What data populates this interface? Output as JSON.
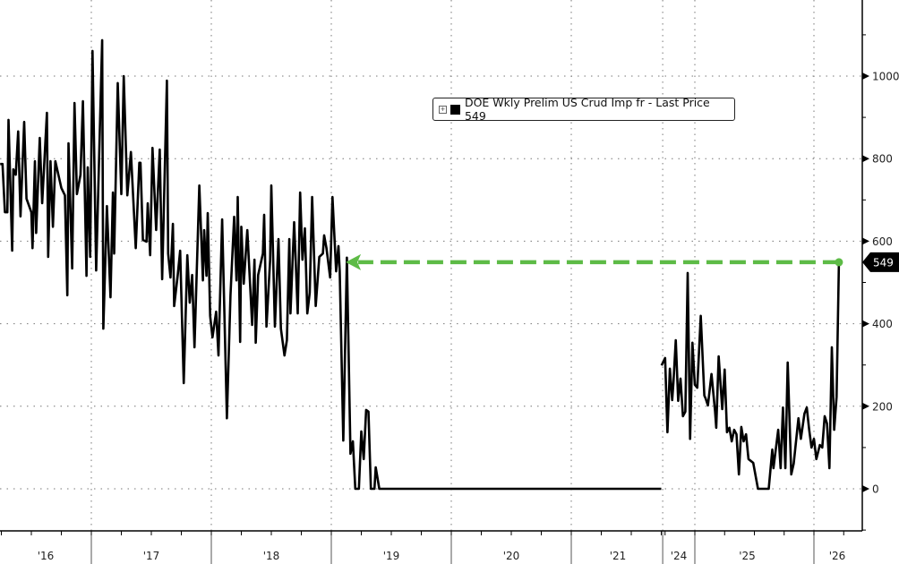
{
  "chart_data": {
    "type": "line",
    "title": "",
    "xlabel": "",
    "ylabel": "",
    "ylim": [
      -100,
      1185
    ],
    "y_ticks": [
      0,
      200,
      400,
      600,
      800,
      1000
    ],
    "y_tick_labels": [
      "0",
      "200",
      "400",
      "600",
      "800",
      "1000"
    ],
    "x_tick_labels": [
      "'16",
      "'17",
      "'18",
      "'19",
      "'20",
      "'21",
      "'24",
      "'25",
      "'26"
    ],
    "x_axis_break": "2021 to 2024",
    "grid": true,
    "axis_side": "right",
    "legend": {
      "placement": "top-center",
      "text": "DOE Wkly Prelim US Crud Imp fr - Last Price 549"
    },
    "last_price_label": "549",
    "last_price": 549,
    "reference_line": {
      "style": "dashed arrow",
      "color": "#5dbb46",
      "value": 549,
      "from_year": 2026.21,
      "to_year": 2019.12
    },
    "series": [
      {
        "color": "#000000",
        "segments": [
          [
            [
              2016.24,
              787
            ],
            [
              2016.26,
              787
            ],
            [
              2016.28,
              670
            ],
            [
              2016.3,
              670
            ],
            [
              2016.31,
              894
            ],
            [
              2016.34,
              577
            ],
            [
              2016.35,
              774
            ],
            [
              2016.37,
              761
            ],
            [
              2016.39,
              866
            ],
            [
              2016.41,
              660
            ],
            [
              2016.44,
              889
            ],
            [
              2016.46,
              703
            ],
            [
              2016.5,
              670
            ],
            [
              2016.51,
              583
            ],
            [
              2016.53,
              794
            ],
            [
              2016.54,
              620
            ],
            [
              2016.57,
              850
            ],
            [
              2016.59,
              692
            ],
            [
              2016.63,
              911
            ],
            [
              2016.64,
              562
            ],
            [
              2016.66,
              794
            ],
            [
              2016.68,
              635
            ],
            [
              2016.7,
              794
            ],
            [
              2016.75,
              729
            ],
            [
              2016.78,
              711
            ],
            [
              2016.8,
              469
            ],
            [
              2016.81,
              837
            ],
            [
              2016.84,
              534
            ],
            [
              2016.86,
              935
            ],
            [
              2016.88,
              714
            ],
            [
              2016.91,
              761
            ],
            [
              2016.93,
              939
            ],
            [
              2016.96,
              516
            ],
            [
              2016.97,
              779
            ],
            [
              2016.99,
              562
            ],
            [
              2017.01,
              1061
            ],
            [
              2017.04,
              529
            ],
            [
              2017.09,
              1087
            ],
            [
              2017.1,
              388
            ],
            [
              2017.13,
              685
            ],
            [
              2017.16,
              464
            ],
            [
              2017.18,
              718
            ],
            [
              2017.19,
              570
            ],
            [
              2017.22,
              983
            ],
            [
              2017.25,
              714
            ],
            [
              2017.27,
              1000
            ],
            [
              2017.3,
              711
            ],
            [
              2017.33,
              816
            ],
            [
              2017.37,
              583
            ],
            [
              2017.4,
              790
            ],
            [
              2017.41,
              790
            ],
            [
              2017.43,
              603
            ],
            [
              2017.46,
              599
            ],
            [
              2017.47,
              692
            ],
            [
              2017.49,
              566
            ],
            [
              2017.51,
              826
            ],
            [
              2017.54,
              627
            ],
            [
              2017.57,
              822
            ],
            [
              2017.59,
              508
            ],
            [
              2017.63,
              989
            ],
            [
              2017.64,
              570
            ],
            [
              2017.66,
              512
            ],
            [
              2017.68,
              642
            ],
            [
              2017.69,
              443
            ],
            [
              2017.72,
              518
            ],
            [
              2017.74,
              577
            ],
            [
              2017.77,
              256
            ],
            [
              2017.8,
              566
            ],
            [
              2017.82,
              451
            ],
            [
              2017.84,
              518
            ],
            [
              2017.86,
              343
            ],
            [
              2017.9,
              735
            ],
            [
              2017.93,
              505
            ],
            [
              2017.94,
              627
            ],
            [
              2017.96,
              516
            ],
            [
              2017.97,
              668
            ],
            [
              2017.99,
              419
            ],
            [
              2018.01,
              367
            ],
            [
              2018.04,
              429
            ],
            [
              2018.06,
              323
            ],
            [
              2018.09,
              653
            ],
            [
              2018.13,
              171
            ],
            [
              2018.16,
              469
            ],
            [
              2018.19,
              659
            ],
            [
              2018.21,
              505
            ],
            [
              2018.22,
              707
            ],
            [
              2018.24,
              356
            ],
            [
              2018.25,
              635
            ],
            [
              2018.27,
              497
            ],
            [
              2018.3,
              627
            ],
            [
              2018.34,
              397
            ],
            [
              2018.36,
              555
            ],
            [
              2018.37,
              354
            ],
            [
              2018.39,
              518
            ],
            [
              2018.43,
              570
            ],
            [
              2018.44,
              664
            ],
            [
              2018.46,
              393
            ],
            [
              2018.49,
              555
            ],
            [
              2018.5,
              735
            ],
            [
              2018.53,
              393
            ],
            [
              2018.56,
              605
            ],
            [
              2018.58,
              388
            ],
            [
              2018.61,
              323
            ],
            [
              2018.63,
              360
            ],
            [
              2018.65,
              605
            ],
            [
              2018.66,
              425
            ],
            [
              2018.69,
              646
            ],
            [
              2018.7,
              577
            ],
            [
              2018.72,
              425
            ],
            [
              2018.74,
              718
            ],
            [
              2018.76,
              555
            ],
            [
              2018.78,
              631
            ],
            [
              2018.8,
              425
            ],
            [
              2018.82,
              475
            ],
            [
              2018.84,
              707
            ],
            [
              2018.87,
              443
            ],
            [
              2018.9,
              562
            ],
            [
              2018.93,
              570
            ],
            [
              2018.94,
              614
            ],
            [
              2018.96,
              583
            ],
            [
              2018.99,
              512
            ],
            [
              2019.01,
              707
            ],
            [
              2019.04,
              527
            ],
            [
              2019.06,
              588
            ],
            [
              2019.07,
              527
            ],
            [
              2019.1,
              117
            ],
            [
              2019.13,
              560
            ],
            [
              2019.16,
              85
            ],
            [
              2019.18,
              115
            ],
            [
              2019.2,
              0
            ],
            [
              2019.23,
              0
            ],
            [
              2019.25,
              139
            ],
            [
              2019.27,
              72
            ],
            [
              2019.29,
              191
            ],
            [
              2019.31,
              187
            ],
            [
              2019.33,
              0
            ],
            [
              2019.36,
              0
            ],
            [
              2019.37,
              52
            ],
            [
              2019.4,
              0
            ],
            [
              2021.75,
              0
            ]
          ],
          [
            [
              2024.72,
              299
            ],
            [
              2024.75,
              317
            ],
            [
              2024.77,
              137
            ],
            [
              2024.79,
              291
            ],
            [
              2024.81,
              215
            ],
            [
              2024.82,
              258
            ],
            [
              2024.84,
              360
            ],
            [
              2024.86,
              213
            ],
            [
              2024.88,
              267
            ],
            [
              2024.9,
              176
            ],
            [
              2024.92,
              187
            ],
            [
              2024.94,
              523
            ],
            [
              2024.96,
              121
            ],
            [
              2024.98,
              354
            ],
            [
              2025.0,
              252
            ],
            [
              2025.02,
              245
            ],
            [
              2025.05,
              419
            ],
            [
              2025.08,
              226
            ],
            [
              2025.09,
              219
            ],
            [
              2025.11,
              202
            ],
            [
              2025.14,
              278
            ],
            [
              2025.17,
              187
            ],
            [
              2025.18,
              148
            ],
            [
              2025.2,
              321
            ],
            [
              2025.23,
              193
            ],
            [
              2025.25,
              289
            ],
            [
              2025.27,
              137
            ],
            [
              2025.29,
              148
            ],
            [
              2025.31,
              115
            ],
            [
              2025.33,
              143
            ],
            [
              2025.35,
              132
            ],
            [
              2025.37,
              35
            ],
            [
              2025.39,
              150
            ],
            [
              2025.41,
              115
            ],
            [
              2025.43,
              132
            ],
            [
              2025.45,
              72
            ],
            [
              2025.49,
              63
            ],
            [
              2025.53,
              0
            ],
            [
              2025.62,
              0
            ],
            [
              2025.65,
              95
            ],
            [
              2025.66,
              50
            ],
            [
              2025.7,
              143
            ],
            [
              2025.72,
              50
            ],
            [
              2025.74,
              197
            ],
            [
              2025.76,
              50
            ],
            [
              2025.78,
              306
            ],
            [
              2025.81,
              35
            ],
            [
              2025.83,
              61
            ],
            [
              2025.87,
              171
            ],
            [
              2025.89,
              121
            ],
            [
              2025.92,
              182
            ],
            [
              2025.94,
              197
            ],
            [
              2025.96,
              143
            ],
            [
              2025.98,
              100
            ],
            [
              2026.0,
              121
            ],
            [
              2026.02,
              72
            ],
            [
              2026.05,
              106
            ],
            [
              2026.07,
              100
            ],
            [
              2026.09,
              176
            ],
            [
              2026.11,
              158
            ],
            [
              2026.13,
              50
            ],
            [
              2026.15,
              343
            ],
            [
              2026.17,
              143
            ],
            [
              2026.19,
              223
            ],
            [
              2026.21,
              549
            ]
          ]
        ]
      }
    ]
  }
}
